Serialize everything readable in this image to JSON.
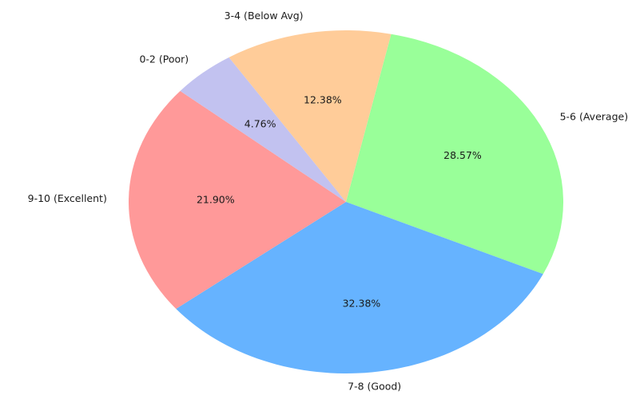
{
  "chart_data": {
    "type": "pie",
    "title": "",
    "categories": [
      "5-6 (Average)",
      "7-8 (Good)",
      "9-10 (Excellent)",
      "0-2 (Poor)",
      "3-4 (Below Avg)"
    ],
    "values": [
      28.57,
      32.38,
      21.9,
      4.76,
      12.38
    ],
    "value_labels": [
      "28.57%",
      "32.38%",
      "21.90%",
      "4.76%",
      "12.38%"
    ],
    "colors": [
      "#99ff99",
      "#66b3ff",
      "#ff9999",
      "#c2c2f0",
      "#ffcc99"
    ],
    "legend": "none"
  }
}
